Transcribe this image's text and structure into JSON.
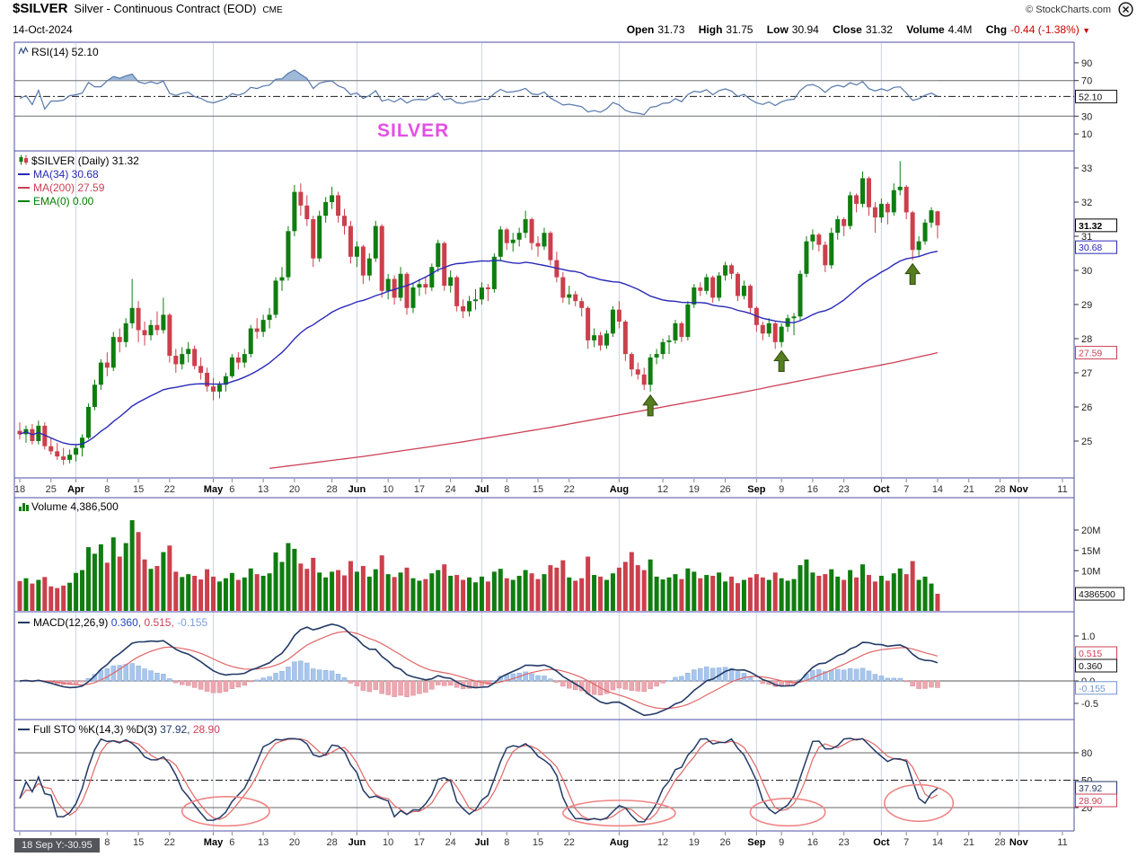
{
  "header": {
    "symbol": "$SILVER",
    "name": "Silver - Continuous Contract (EOD)",
    "exchange": "CME",
    "copyright": "© StockCharts.com",
    "date": "14-Oct-2024",
    "quote": {
      "open_label": "Open",
      "open": "31.73",
      "high_label": "High",
      "high": "31.75",
      "low_label": "Low",
      "low": "30.94",
      "close_label": "Close",
      "close": "31.32",
      "volume_label": "Volume",
      "volume": "4.4M",
      "chg_label": "Chg",
      "chg": "-0.44 (-1.38%)",
      "down_arrow": "▼"
    }
  },
  "annotations": {
    "silver_text": "SILVER",
    "bottom_info": "18 Sep Y:-30.95"
  },
  "panels": {
    "rsi": {
      "label": "RSI(14) 52.10",
      "value_box": "52.10"
    },
    "price": {
      "label": "$SILVER (Daily) 31.32",
      "ma34_label": "MA(34) 30.68",
      "ma200_label": "MA(200) 27.59",
      "ema_label": "EMA(0) 0.00",
      "boxes": {
        "close": "31.32",
        "ma34": "30.68",
        "ma200": "27.59"
      }
    },
    "volume": {
      "label": "Volume 4,386,500",
      "value_box": "4386500"
    },
    "macd": {
      "label": "MACD(12,26,9)",
      "macd_value": "0.360,",
      "signal_value": "0.515,",
      "hist_value": "-0.155",
      "boxes": {
        "signal": "0.515",
        "macd": "0.360",
        "hist": "-0.155"
      }
    },
    "sto": {
      "label": "Full STO %K(14,3) %D(3)",
      "k_value": "37.92,",
      "d_value": "28.90",
      "boxes": {
        "k": "37.92",
        "d": "28.90"
      }
    }
  },
  "axis": {
    "ticks": [
      {
        "label": "18",
        "idx": 0
      },
      {
        "label": "25",
        "idx": 5
      },
      {
        "label": "Apr",
        "idx": 9,
        "bold": true
      },
      {
        "label": "8",
        "idx": 14
      },
      {
        "label": "15",
        "idx": 19
      },
      {
        "label": "22",
        "idx": 24
      },
      {
        "label": "May",
        "idx": 31,
        "bold": true
      },
      {
        "label": "6",
        "idx": 34
      },
      {
        "label": "13",
        "idx": 39
      },
      {
        "label": "20",
        "idx": 44
      },
      {
        "label": "28",
        "idx": 50
      },
      {
        "label": "Jun",
        "idx": 54,
        "bold": true
      },
      {
        "label": "10",
        "idx": 59
      },
      {
        "label": "17",
        "idx": 64
      },
      {
        "label": "24",
        "idx": 69
      },
      {
        "label": "Jul",
        "idx": 74,
        "bold": true
      },
      {
        "label": "8",
        "idx": 78
      },
      {
        "label": "15",
        "idx": 83
      },
      {
        "label": "22",
        "idx": 88
      },
      {
        "label": "Aug",
        "idx": 96,
        "bold": true
      },
      {
        "label": "12",
        "idx": 103
      },
      {
        "label": "19",
        "idx": 108
      },
      {
        "label": "26",
        "idx": 113
      },
      {
        "label": "Sep",
        "idx": 118,
        "bold": true
      },
      {
        "label": "9",
        "idx": 122
      },
      {
        "label": "16",
        "idx": 127
      },
      {
        "label": "23",
        "idx": 132
      },
      {
        "label": "Oct",
        "idx": 138,
        "bold": true
      },
      {
        "label": "7",
        "idx": 142
      },
      {
        "label": "14",
        "idx": 147
      },
      {
        "label": "21",
        "idx": 152
      },
      {
        "label": "28",
        "idx": 157
      },
      {
        "label": "Nov",
        "idx": 160,
        "bold": true
      },
      {
        "label": "11",
        "idx": 167
      }
    ]
  },
  "colors": {
    "up": "#0f7d0f",
    "down": "#cc3f4c",
    "ma34": "#2929b8",
    "ma200": "#cc3f55",
    "ema": "#008000",
    "rsi_line": "#5577aa",
    "rsi_fill": "#9fb9d8",
    "macd_line": "#223a66",
    "signal_line": "#e06666",
    "hist_pos": "#a8c6ec",
    "hist_pos_stroke": "#8aaede",
    "hist_neg": "#eca8b0",
    "hist_neg_stroke": "#dc8a96",
    "sto_k": "#223a66",
    "sto_d": "#e06666",
    "ellipse": "#ef8585",
    "arrow": "#567d1e",
    "arrow_stroke": "#2f4b10",
    "panel_border": "#4d4da8",
    "gridline": "#c9d3e8",
    "threshold": "#666",
    "dashdot": "#1a1a1a",
    "zero_line": "#555",
    "silver_note": "#e44fe4"
  },
  "chart_data": {
    "type": "candlestick",
    "symbol": "$SILVER",
    "period": "daily",
    "date_range": "2024-03-18 to 2024-10-14",
    "panels": [
      "RSI(14)",
      "price with MA(34), MA(200), EMA(0)",
      "volume",
      "MACD(12,26,9)",
      "Full STO %K(14,3) %D(3)"
    ],
    "price_axis_ticks": [
      33,
      32,
      31,
      30,
      29,
      28,
      27,
      26,
      25
    ],
    "rsi_axis_ticks": [
      90,
      70,
      30,
      10
    ],
    "rsi_overbought": 70,
    "rsi_oversold": 30,
    "rsi_current": 52.1,
    "volume_axis_ticks": [
      [
        "20M",
        20
      ],
      [
        "15M",
        15
      ],
      [
        "10M",
        10
      ]
    ],
    "macd_axis_ticks": [
      [
        "1.0",
        1.0
      ],
      [
        "0.5",
        0.5
      ],
      [
        "0.0",
        0.0
      ],
      [
        "-0.5",
        -0.5
      ]
    ],
    "sto_axis_ticks": [
      80,
      50,
      20
    ],
    "sto_mid": 50,
    "month_tick_indices": [
      9,
      31,
      54,
      74,
      96,
      118,
      138,
      160
    ],
    "last": {
      "open": 31.73,
      "high": 31.75,
      "low": 30.94,
      "close": 31.32,
      "volume": 4386500,
      "chg": -0.44,
      "chg_pct": -1.38
    },
    "indicator_values": {
      "rsi": 52.1,
      "ma34": 30.68,
      "ma200": 27.59,
      "ema": 0.0,
      "macd": 0.36,
      "macd_signal": 0.515,
      "macd_hist": -0.155,
      "sto_k": 37.92,
      "sto_d": 28.9
    },
    "arrows": [
      {
        "idx": 101,
        "price": 26.45
      },
      {
        "idx": 122,
        "price": 27.75
      },
      {
        "idx": 143,
        "price": 30.3
      }
    ],
    "sto_ellipses": [
      {
        "idx": 33,
        "rx_days": 7,
        "val": 16,
        "rv": 16
      },
      {
        "idx": 96,
        "rx_days": 9,
        "val": 14,
        "rv": 14
      },
      {
        "idx": 123,
        "rx_days": 6,
        "val": 15,
        "rv": 15
      },
      {
        "idx": 144,
        "rx_days": 5.5,
        "val": 25,
        "rv": 20
      }
    ],
    "ma200_points": [
      [
        40,
        24.2
      ],
      [
        55,
        24.55
      ],
      [
        70,
        24.95
      ],
      [
        85,
        25.4
      ],
      [
        100,
        25.9
      ],
      [
        115,
        26.4
      ],
      [
        130,
        26.95
      ],
      [
        140,
        27.3
      ],
      [
        147,
        27.59
      ]
    ],
    "candles": [
      [
        25.3,
        25.55,
        25.05,
        25.2
      ],
      [
        25.2,
        25.45,
        24.95,
        25.35
      ],
      [
        25.35,
        25.5,
        24.9,
        25.0
      ],
      [
        25.0,
        25.6,
        24.9,
        25.45
      ],
      [
        25.45,
        25.55,
        24.75,
        24.85
      ],
      [
        24.85,
        25.1,
        24.6,
        24.7
      ],
      [
        24.7,
        24.95,
        24.45,
        24.55
      ],
      [
        24.55,
        24.8,
        24.3,
        24.45
      ],
      [
        24.45,
        24.75,
        24.35,
        24.6
      ],
      [
        24.6,
        24.9,
        24.4,
        24.8
      ],
      [
        24.8,
        25.2,
        24.55,
        25.1
      ],
      [
        25.1,
        26.1,
        25.05,
        26.0
      ],
      [
        26.0,
        26.8,
        25.9,
        26.65
      ],
      [
        26.65,
        27.4,
        26.5,
        27.3
      ],
      [
        27.3,
        27.6,
        26.9,
        27.15
      ],
      [
        27.15,
        28.2,
        27.05,
        28.05
      ],
      [
        28.05,
        28.3,
        27.6,
        27.9
      ],
      [
        27.9,
        28.6,
        27.75,
        28.45
      ],
      [
        28.45,
        29.75,
        28.3,
        28.9
      ],
      [
        28.9,
        29.1,
        27.9,
        28.25
      ],
      [
        28.25,
        28.5,
        27.8,
        28.1
      ],
      [
        28.1,
        28.55,
        27.95,
        28.4
      ],
      [
        28.4,
        28.8,
        28.1,
        28.25
      ],
      [
        28.25,
        29.2,
        28.15,
        28.7
      ],
      [
        28.7,
        28.75,
        27.3,
        27.5
      ],
      [
        27.5,
        27.7,
        27.0,
        27.25
      ],
      [
        27.25,
        27.75,
        27.1,
        27.55
      ],
      [
        27.55,
        27.9,
        27.3,
        27.7
      ],
      [
        27.7,
        27.8,
        27.1,
        27.2
      ],
      [
        27.2,
        27.45,
        26.8,
        27.0
      ],
      [
        27.0,
        27.15,
        26.45,
        26.6
      ],
      [
        26.6,
        26.85,
        26.2,
        26.45
      ],
      [
        26.45,
        26.75,
        26.25,
        26.65
      ],
      [
        26.65,
        27.0,
        26.45,
        26.9
      ],
      [
        26.9,
        27.55,
        26.85,
        27.45
      ],
      [
        27.45,
        27.6,
        27.1,
        27.3
      ],
      [
        27.3,
        27.7,
        27.15,
        27.55
      ],
      [
        27.55,
        28.4,
        27.45,
        28.3
      ],
      [
        28.3,
        28.6,
        28.0,
        28.2
      ],
      [
        28.2,
        28.7,
        28.05,
        28.55
      ],
      [
        28.55,
        28.9,
        28.3,
        28.7
      ],
      [
        28.7,
        29.8,
        28.6,
        29.7
      ],
      [
        29.7,
        30.1,
        29.4,
        29.8
      ],
      [
        29.8,
        31.3,
        29.7,
        31.15
      ],
      [
        31.15,
        32.5,
        31.0,
        32.3
      ],
      [
        32.3,
        32.55,
        31.6,
        31.9
      ],
      [
        31.9,
        32.2,
        31.3,
        31.5
      ],
      [
        31.5,
        31.6,
        30.1,
        30.35
      ],
      [
        30.35,
        31.75,
        30.25,
        31.6
      ],
      [
        31.6,
        32.15,
        31.4,
        32.0
      ],
      [
        32.0,
        32.45,
        31.8,
        32.2
      ],
      [
        32.2,
        32.3,
        31.4,
        31.6
      ],
      [
        31.6,
        31.8,
        31.05,
        31.3
      ],
      [
        31.3,
        31.45,
        30.2,
        30.4
      ],
      [
        30.4,
        30.85,
        30.1,
        30.7
      ],
      [
        30.7,
        30.75,
        29.6,
        29.85
      ],
      [
        29.85,
        30.5,
        29.7,
        30.35
      ],
      [
        30.35,
        31.45,
        30.25,
        31.3
      ],
      [
        31.3,
        31.35,
        29.2,
        29.4
      ],
      [
        29.4,
        29.9,
        29.15,
        29.75
      ],
      [
        29.75,
        29.85,
        29.0,
        29.2
      ],
      [
        29.2,
        30.1,
        29.1,
        29.9
      ],
      [
        29.9,
        29.95,
        28.7,
        28.9
      ],
      [
        28.9,
        29.65,
        28.75,
        29.5
      ],
      [
        29.5,
        29.75,
        29.25,
        29.6
      ],
      [
        29.6,
        29.8,
        29.3,
        29.5
      ],
      [
        29.5,
        30.2,
        29.4,
        30.1
      ],
      [
        30.1,
        30.9,
        29.95,
        30.8
      ],
      [
        30.8,
        30.85,
        29.4,
        29.55
      ],
      [
        29.55,
        30.0,
        29.35,
        29.8
      ],
      [
        29.8,
        29.85,
        28.8,
        28.95
      ],
      [
        28.95,
        29.15,
        28.6,
        28.8
      ],
      [
        28.8,
        29.25,
        28.65,
        29.1
      ],
      [
        29.1,
        29.45,
        28.85,
        29.15
      ],
      [
        29.15,
        29.65,
        29.0,
        29.5
      ],
      [
        29.5,
        29.6,
        29.1,
        29.45
      ],
      [
        29.45,
        30.5,
        29.35,
        30.4
      ],
      [
        30.4,
        31.3,
        30.3,
        31.2
      ],
      [
        31.2,
        31.25,
        30.6,
        30.8
      ],
      [
        30.8,
        31.1,
        30.55,
        30.9
      ],
      [
        30.9,
        31.25,
        30.7,
        31.1
      ],
      [
        31.1,
        31.75,
        30.95,
        31.5
      ],
      [
        31.5,
        31.55,
        30.6,
        30.8
      ],
      [
        30.8,
        31.0,
        30.4,
        30.7
      ],
      [
        30.7,
        31.25,
        30.6,
        31.1
      ],
      [
        31.1,
        31.15,
        30.15,
        30.3
      ],
      [
        30.3,
        30.55,
        29.65,
        29.8
      ],
      [
        29.8,
        29.95,
        29.05,
        29.2
      ],
      [
        29.2,
        29.55,
        29.0,
        29.3
      ],
      [
        29.3,
        29.4,
        28.95,
        29.1
      ],
      [
        29.1,
        29.2,
        28.65,
        28.9
      ],
      [
        28.9,
        28.95,
        27.7,
        27.95
      ],
      [
        27.95,
        28.3,
        27.75,
        28.1
      ],
      [
        28.1,
        28.2,
        27.65,
        27.8
      ],
      [
        27.8,
        28.25,
        27.7,
        28.15
      ],
      [
        28.15,
        28.95,
        28.05,
        28.85
      ],
      [
        28.85,
        29.1,
        28.3,
        28.5
      ],
      [
        28.5,
        28.55,
        27.35,
        27.55
      ],
      [
        27.55,
        27.6,
        26.9,
        27.1
      ],
      [
        27.1,
        27.3,
        26.8,
        26.95
      ],
      [
        26.95,
        27.15,
        26.5,
        26.65
      ],
      [
        26.65,
        27.55,
        26.45,
        27.45
      ],
      [
        27.45,
        27.7,
        27.25,
        27.55
      ],
      [
        27.55,
        28.0,
        27.4,
        27.9
      ],
      [
        27.9,
        28.1,
        27.55,
        27.95
      ],
      [
        27.95,
        28.55,
        27.85,
        28.45
      ],
      [
        28.45,
        28.5,
        27.9,
        28.05
      ],
      [
        28.05,
        29.1,
        27.95,
        29.0
      ],
      [
        29.0,
        29.6,
        28.9,
        29.5
      ],
      [
        29.5,
        29.65,
        29.25,
        29.4
      ],
      [
        29.4,
        29.9,
        29.3,
        29.8
      ],
      [
        29.8,
        29.85,
        29.05,
        29.2
      ],
      [
        29.2,
        29.95,
        29.1,
        29.85
      ],
      [
        29.85,
        30.25,
        29.7,
        30.15
      ],
      [
        30.15,
        30.2,
        29.75,
        29.9
      ],
      [
        29.9,
        29.95,
        29.1,
        29.25
      ],
      [
        29.25,
        29.7,
        29.15,
        29.55
      ],
      [
        29.55,
        29.6,
        28.75,
        28.9
      ],
      [
        28.9,
        28.95,
        28.2,
        28.4
      ],
      [
        28.4,
        28.5,
        27.95,
        28.15
      ],
      [
        28.15,
        28.6,
        28.05,
        28.45
      ],
      [
        28.45,
        28.5,
        27.7,
        27.9
      ],
      [
        27.9,
        28.45,
        27.75,
        28.35
      ],
      [
        28.35,
        28.7,
        28.2,
        28.6
      ],
      [
        28.6,
        28.75,
        28.1,
        28.65
      ],
      [
        28.65,
        30.0,
        28.55,
        29.9
      ],
      [
        29.9,
        31.0,
        29.8,
        30.85
      ],
      [
        30.85,
        31.2,
        30.6,
        31.05
      ],
      [
        31.05,
        31.1,
        30.55,
        30.75
      ],
      [
        30.75,
        30.85,
        29.95,
        30.15
      ],
      [
        30.15,
        31.25,
        30.05,
        31.1
      ],
      [
        31.1,
        31.6,
        30.9,
        31.5
      ],
      [
        31.5,
        31.55,
        31.0,
        31.3
      ],
      [
        31.3,
        32.3,
        31.2,
        32.2
      ],
      [
        32.2,
        32.25,
        31.7,
        31.95
      ],
      [
        31.95,
        32.9,
        31.85,
        32.7
      ],
      [
        32.7,
        32.75,
        31.6,
        31.85
      ],
      [
        31.85,
        32.0,
        31.1,
        31.55
      ],
      [
        31.55,
        32.1,
        31.4,
        31.95
      ],
      [
        31.95,
        32.0,
        31.35,
        31.7
      ],
      [
        31.7,
        32.55,
        31.6,
        32.35
      ],
      [
        32.35,
        33.2,
        32.2,
        32.45
      ],
      [
        32.45,
        32.5,
        31.5,
        31.7
      ],
      [
        31.7,
        31.75,
        30.3,
        30.6
      ],
      [
        30.6,
        31.0,
        30.4,
        30.85
      ],
      [
        30.85,
        31.5,
        30.75,
        31.4
      ],
      [
        31.4,
        31.85,
        31.25,
        31.76
      ],
      [
        31.73,
        31.75,
        30.94,
        31.32
      ]
    ],
    "volumes_millions": [
      7.5,
      8.2,
      6.9,
      7.8,
      8.5,
      6.2,
      5.8,
      6.4,
      7.1,
      9.5,
      10.2,
      15.8,
      14.2,
      16.5,
      12.0,
      18.2,
      13.5,
      16.8,
      22.4,
      19.5,
      12.8,
      10.5,
      11.2,
      14.6,
      16.2,
      9.8,
      8.5,
      9.2,
      8.8,
      7.9,
      10.4,
      8.6,
      7.4,
      8.2,
      9.5,
      7.8,
      8.4,
      10.6,
      9.2,
      8.8,
      9.4,
      14.5,
      12.2,
      16.8,
      15.4,
      11.8,
      10.5,
      13.2,
      9.6,
      8.4,
      9.8,
      10.2,
      8.9,
      12.4,
      9.8,
      11.2,
      8.6,
      10.4,
      13.8,
      9.2,
      8.5,
      9.6,
      10.8,
      8.2,
      7.6,
      8.0,
      9.4,
      10.2,
      11.6,
      8.8,
      9.0,
      7.8,
      8.4,
      7.2,
      8.6,
      7.4,
      9.8,
      10.5,
      8.2,
      7.8,
      8.8,
      10.2,
      9.4,
      8.0,
      9.2,
      11.4,
      10.8,
      12.6,
      8.4,
      7.6,
      8.2,
      13.5,
      9.0,
      8.6,
      7.8,
      9.4,
      10.8,
      12.2,
      14.6,
      11.4,
      10.2,
      12.8,
      8.6,
      7.9,
      8.4,
      9.2,
      8.0,
      10.6,
      9.8,
      8.2,
      9.0,
      8.8,
      9.6,
      7.4,
      8.6,
      7.0,
      7.8,
      8.4,
      9.2,
      8.4,
      7.8,
      9.6,
      8.2,
      7.6,
      8.0,
      11.4,
      12.8,
      9.6,
      8.8,
      9.2,
      10.4,
      8.6,
      7.8,
      10.2,
      8.4,
      11.6,
      9.0,
      7.4,
      8.8,
      7.6,
      9.4,
      10.6,
      9.2,
      12.4,
      7.8,
      8.6,
      6.9,
      4.4
    ]
  }
}
